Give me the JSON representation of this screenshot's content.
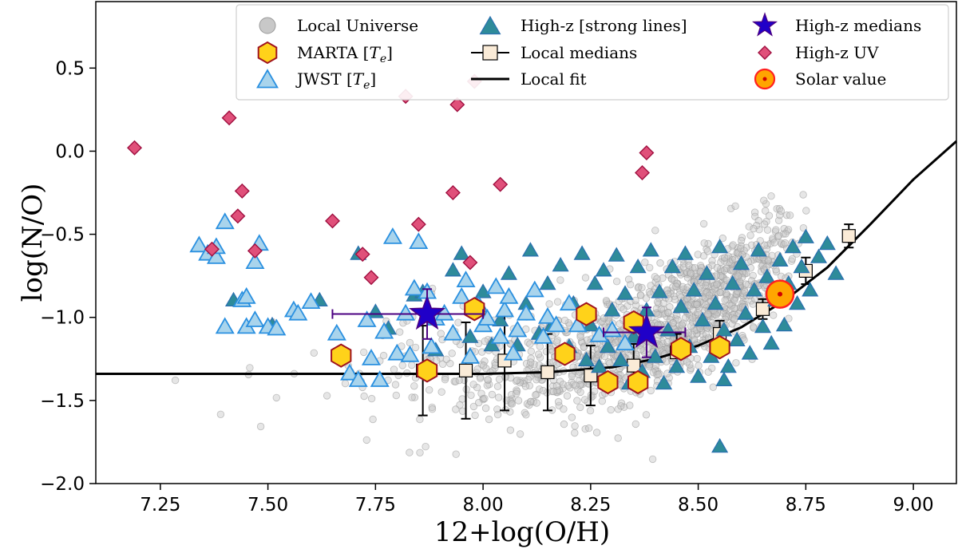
{
  "chart_data": {
    "type": "scatter",
    "xlabel": "12+log(O/H)",
    "ylabel": "log(N/O)",
    "xlim": [
      7.1,
      9.1
    ],
    "ylim": [
      -2.0,
      0.9
    ],
    "xticks": [
      "7.25",
      "7.50",
      "7.75",
      "8.00",
      "8.25",
      "8.50",
      "8.75",
      "9.00"
    ],
    "yticks": [
      "0.5",
      "0.0",
      "−0.5",
      "−1.0",
      "−1.5",
      "−2.0"
    ],
    "grid": false,
    "legend_position": "top-right",
    "legend": [
      {
        "key": "local",
        "label": "Local Universe"
      },
      {
        "key": "marta",
        "label": "MARTA [",
        "sub": "T",
        "subsub": "e",
        "tail": "]"
      },
      {
        "key": "jwst",
        "label": "JWST [",
        "sub": "T",
        "subsub": "e",
        "tail": "]"
      },
      {
        "key": "strong",
        "label": "High-z [strong lines]"
      },
      {
        "key": "medians",
        "label": "Local medians"
      },
      {
        "key": "fit",
        "label": "Local fit"
      },
      {
        "key": "hzmed",
        "label": "High-z medians"
      },
      {
        "key": "uv",
        "label": "High-z UV"
      },
      {
        "key": "solar",
        "label": "Solar value"
      }
    ],
    "colors": {
      "local": "#c8c8c8",
      "marta_fill": "#ffd21a",
      "marta_edge": "#a0141e",
      "jwst_fill": "#a9d4ec",
      "jwst_edge": "#2a90e0",
      "strong_fill": "#2e8b9a",
      "strong_edge": "#2a6fb0",
      "median_fill": "#faebd7",
      "uv_fill": "#e0507a",
      "uv_edge": "#a01040",
      "hzmed": "#2000c8",
      "solar_fill": "#ffa500",
      "solar_edge": "#ff2020"
    },
    "series": [
      {
        "name": "Local medians",
        "points": [
          {
            "x": 7.86,
            "y": -1.32,
            "err": 0.27
          },
          {
            "x": 7.96,
            "y": -1.32,
            "err": 0.29
          },
          {
            "x": 8.05,
            "y": -1.26,
            "err": 0.3
          },
          {
            "x": 8.15,
            "y": -1.33,
            "err": 0.23
          },
          {
            "x": 8.25,
            "y": -1.35,
            "err": 0.18
          },
          {
            "x": 8.35,
            "y": -1.29,
            "err": 0.13
          },
          {
            "x": 8.45,
            "y": -1.21,
            "err": 0.11
          },
          {
            "x": 8.55,
            "y": -1.1,
            "err": 0.08
          },
          {
            "x": 8.65,
            "y": -0.95,
            "err": 0.06
          },
          {
            "x": 8.75,
            "y": -0.72,
            "err": 0.08
          },
          {
            "x": 8.85,
            "y": -0.51,
            "err": 0.07
          }
        ]
      },
      {
        "name": "Local fit",
        "points": [
          [
            7.1,
            -1.34
          ],
          [
            8.0,
            -1.34
          ],
          [
            8.15,
            -1.33
          ],
          [
            8.3,
            -1.3
          ],
          [
            8.4,
            -1.25
          ],
          [
            8.5,
            -1.17
          ],
          [
            8.6,
            -1.06
          ],
          [
            8.7,
            -0.9
          ],
          [
            8.8,
            -0.7
          ],
          [
            8.9,
            -0.44
          ],
          [
            9.0,
            -0.17
          ],
          [
            9.1,
            0.06
          ]
        ]
      },
      {
        "name": "MARTA [Te]",
        "points": [
          [
            7.67,
            -1.23
          ],
          [
            7.87,
            -1.32
          ],
          [
            7.98,
            -0.95
          ],
          [
            8.24,
            -0.98
          ],
          [
            8.19,
            -1.22
          ],
          [
            8.29,
            -1.39
          ],
          [
            8.36,
            -1.39
          ],
          [
            8.35,
            -1.03
          ],
          [
            8.46,
            -1.19
          ],
          [
            8.55,
            -1.18
          ]
        ]
      },
      {
        "name": "JWST [Te]",
        "points": [
          [
            7.34,
            -0.57
          ],
          [
            7.36,
            -0.62
          ],
          [
            7.38,
            -0.64
          ],
          [
            7.38,
            -0.58
          ],
          [
            7.4,
            -0.43
          ],
          [
            7.4,
            -1.06
          ],
          [
            7.44,
            -0.9
          ],
          [
            7.45,
            -0.88
          ],
          [
            7.45,
            -1.06
          ],
          [
            7.47,
            -1.02
          ],
          [
            7.47,
            -0.67
          ],
          [
            7.48,
            -0.56
          ],
          [
            7.5,
            -1.06
          ],
          [
            7.52,
            -1.07
          ],
          [
            7.56,
            -0.96
          ],
          [
            7.57,
            -0.98
          ],
          [
            7.6,
            -0.91
          ],
          [
            7.66,
            -1.1
          ],
          [
            7.69,
            -1.34
          ],
          [
            7.71,
            -1.38
          ],
          [
            7.73,
            -1.02
          ],
          [
            7.74,
            -1.25
          ],
          [
            7.76,
            -1.38
          ],
          [
            7.77,
            -1.09
          ],
          [
            7.79,
            -0.52
          ],
          [
            7.8,
            -1.22
          ],
          [
            7.82,
            -0.98
          ],
          [
            7.83,
            -1.23
          ],
          [
            7.84,
            -0.83
          ],
          [
            7.85,
            -0.55
          ],
          [
            7.87,
            -0.85
          ],
          [
            7.88,
            -1.18
          ],
          [
            7.89,
            -1.01
          ],
          [
            7.91,
            -0.98
          ],
          [
            7.93,
            -1.1
          ],
          [
            7.95,
            -0.88
          ],
          [
            7.96,
            -0.78
          ],
          [
            7.97,
            -1.24
          ],
          [
            7.99,
            -0.93
          ],
          [
            8.0,
            -1.05
          ],
          [
            8.01,
            -1.01
          ],
          [
            8.03,
            -0.82
          ],
          [
            8.04,
            -1.12
          ],
          [
            8.05,
            -0.96
          ],
          [
            8.06,
            -0.88
          ],
          [
            8.07,
            -1.22
          ],
          [
            8.08,
            -1.08
          ],
          [
            8.1,
            -0.98
          ],
          [
            8.12,
            -0.84
          ],
          [
            8.14,
            -1.12
          ],
          [
            8.15,
            -1.0
          ],
          [
            8.17,
            -1.05
          ],
          [
            8.2,
            -0.92
          ],
          [
            8.22,
            -1.05
          ],
          [
            8.27,
            -1.11
          ],
          [
            8.3,
            -1.08
          ],
          [
            8.33,
            -1.16
          ]
        ]
      },
      {
        "name": "High-z [strong lines]",
        "points": [
          [
            7.42,
            -0.9
          ],
          [
            7.51,
            -1.05
          ],
          [
            7.62,
            -0.9
          ],
          [
            7.71,
            -0.62
          ],
          [
            7.75,
            -0.97
          ],
          [
            7.78,
            -1.07
          ],
          [
            7.84,
            -0.87
          ],
          [
            7.86,
            -0.85
          ],
          [
            7.89,
            -1.2
          ],
          [
            7.93,
            -0.72
          ],
          [
            7.95,
            -0.62
          ],
          [
            7.97,
            -1.12
          ],
          [
            8.0,
            -0.85
          ],
          [
            8.02,
            -1.17
          ],
          [
            8.04,
            -1.02
          ],
          [
            8.06,
            -0.74
          ],
          [
            8.08,
            -1.17
          ],
          [
            8.1,
            -0.92
          ],
          [
            8.11,
            -0.6
          ],
          [
            8.13,
            -1.1
          ],
          [
            8.15,
            -0.8
          ],
          [
            8.16,
            -1.05
          ],
          [
            8.18,
            -0.69
          ],
          [
            8.2,
            -1.18
          ],
          [
            8.21,
            -0.92
          ],
          [
            8.23,
            -0.62
          ],
          [
            8.24,
            -1.26
          ],
          [
            8.25,
            -1.05
          ],
          [
            8.26,
            -0.8
          ],
          [
            8.27,
            -1.3
          ],
          [
            8.28,
            -0.72
          ],
          [
            8.29,
            -1.18
          ],
          [
            8.3,
            -0.96
          ],
          [
            8.31,
            -0.63
          ],
          [
            8.32,
            -1.26
          ],
          [
            8.33,
            -0.86
          ],
          [
            8.34,
            -1.4
          ],
          [
            8.35,
            -1.12
          ],
          [
            8.36,
            -0.7
          ],
          [
            8.37,
            -1.33
          ],
          [
            8.38,
            -0.96
          ],
          [
            8.39,
            -0.6
          ],
          [
            8.4,
            -1.24
          ],
          [
            8.41,
            -0.85
          ],
          [
            8.42,
            -1.4
          ],
          [
            8.43,
            -1.08
          ],
          [
            8.44,
            -0.7
          ],
          [
            8.45,
            -1.3
          ],
          [
            8.46,
            -0.94
          ],
          [
            8.47,
            -0.62
          ],
          [
            8.48,
            -1.18
          ],
          [
            8.49,
            -0.84
          ],
          [
            8.5,
            -1.36
          ],
          [
            8.51,
            -1.02
          ],
          [
            8.52,
            -0.74
          ],
          [
            8.53,
            -1.24
          ],
          [
            8.54,
            -0.92
          ],
          [
            8.55,
            -0.58
          ],
          [
            8.56,
            -1.08
          ],
          [
            8.57,
            -1.3
          ],
          [
            8.58,
            -0.8
          ],
          [
            8.59,
            -1.14
          ],
          [
            8.6,
            -0.68
          ],
          [
            8.61,
            -0.98
          ],
          [
            8.62,
            -1.22
          ],
          [
            8.63,
            -0.84
          ],
          [
            8.64,
            -0.6
          ],
          [
            8.65,
            -1.06
          ],
          [
            8.66,
            -0.76
          ],
          [
            8.67,
            -1.16
          ],
          [
            8.68,
            -0.9
          ],
          [
            8.69,
            -0.66
          ],
          [
            8.7,
            -1.05
          ],
          [
            8.71,
            -0.8
          ],
          [
            8.72,
            -0.58
          ],
          [
            8.73,
            -0.92
          ],
          [
            8.74,
            -0.7
          ],
          [
            8.75,
            -0.52
          ],
          [
            8.76,
            -0.84
          ],
          [
            8.78,
            -0.64
          ],
          [
            8.8,
            -0.56
          ],
          [
            8.82,
            -0.74
          ],
          [
            8.56,
            -1.38
          ],
          [
            8.55,
            -1.78
          ]
        ]
      },
      {
        "name": "High-z UV",
        "points": [
          [
            7.19,
            0.02
          ],
          [
            7.41,
            0.2
          ],
          [
            7.44,
            -0.24
          ],
          [
            7.43,
            -0.39
          ],
          [
            7.37,
            -0.59
          ],
          [
            7.47,
            -0.6
          ],
          [
            7.65,
            -0.42
          ],
          [
            7.72,
            -0.62
          ],
          [
            7.74,
            -0.76
          ],
          [
            7.82,
            0.33
          ],
          [
            7.85,
            -0.44
          ],
          [
            7.94,
            0.28
          ],
          [
            7.93,
            -0.25
          ],
          [
            7.98,
            0.42
          ],
          [
            7.97,
            -0.67
          ],
          [
            8.04,
            -0.2
          ],
          [
            8.37,
            -0.13
          ],
          [
            8.38,
            -0.01
          ]
        ]
      },
      {
        "name": "High-z medians",
        "points": [
          {
            "x": 7.87,
            "y": -0.98,
            "xerr_lo": 7.65,
            "xerr_hi": 8.0,
            "yerr": 0.15
          },
          {
            "x": 8.38,
            "y": -1.09,
            "xerr_lo": 8.28,
            "xerr_hi": 8.47,
            "yerr": 0.15
          }
        ]
      },
      {
        "name": "Solar value",
        "points": [
          [
            8.69,
            -0.86
          ]
        ]
      },
      {
        "name": "Local Universe",
        "points": []
      }
    ]
  }
}
